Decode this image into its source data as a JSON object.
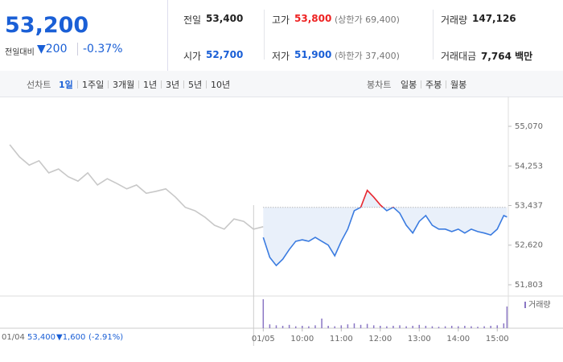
{
  "header": {
    "price": "53,200",
    "change_label": "전일대비",
    "change": "▼200",
    "change_rate": "-0.37%",
    "stats": [
      {
        "label": "전일",
        "value": "53,400",
        "color": "#222"
      },
      {
        "label": "고가",
        "value": "53,800",
        "note": "(상한가 69,400)",
        "color": "#e22"
      },
      {
        "label": "거래량",
        "value": "147,126",
        "color": "#222"
      },
      {
        "label": "시가",
        "value": "52,700",
        "color": "#1a5fd6"
      },
      {
        "label": "저가",
        "value": "51,900",
        "note": "(하한가 37,400)",
        "color": "#1a5fd6"
      },
      {
        "label": "거래대금",
        "value": "7,764 백만",
        "color": "#222"
      }
    ]
  },
  "toolbar": {
    "line_label": "선차트",
    "line_periods": [
      "1일",
      "1주일",
      "3개월",
      "1년",
      "3년",
      "5년",
      "10년"
    ],
    "candle_label": "봉차트",
    "candle_periods": [
      "일봉",
      "주봉",
      "월봉"
    ]
  },
  "chart_data": {
    "type": "line",
    "prev_close": 53400,
    "series": [
      {
        "color": "#c8c8c8",
        "x": [
          -390,
          -375,
          -360,
          -345,
          -330,
          -315,
          -300,
          -285,
          -270,
          -255,
          -240,
          -225,
          -210,
          -195,
          -180,
          -165,
          -150,
          -135,
          -120,
          -105,
          -90,
          -75,
          -60,
          -45,
          -30,
          -15,
          0
        ],
        "values": [
          54690,
          54440,
          54270,
          54360,
          54110,
          54190,
          54030,
          53940,
          54110,
          53860,
          53990,
          53890,
          53780,
          53860,
          53690,
          53730,
          53780,
          53610,
          53400,
          53330,
          53200,
          53030,
          52950,
          53160,
          53110,
          52950,
          53000
        ]
      },
      {
        "color": "#3a7be0",
        "color_up": "#e8262e",
        "x": [
          0,
          10,
          20,
          30,
          40,
          50,
          60,
          70,
          80,
          90,
          100,
          110,
          120,
          130,
          140,
          150,
          160,
          170,
          180,
          190,
          200,
          210,
          220,
          230,
          240,
          250,
          260,
          270,
          280,
          290,
          300,
          310,
          320,
          330,
          340,
          350,
          360,
          370,
          375
        ],
        "values": [
          52780,
          52370,
          52200,
          52330,
          52530,
          52700,
          52730,
          52700,
          52780,
          52700,
          52620,
          52400,
          52700,
          52950,
          53330,
          53400,
          53750,
          53610,
          53450,
          53330,
          53400,
          53280,
          53030,
          52870,
          53110,
          53230,
          53030,
          52950,
          52950,
          52900,
          52950,
          52870,
          52950,
          52900,
          52870,
          52830,
          52950,
          53230,
          53200
        ]
      }
    ],
    "xlim": [
      -405,
      377
    ],
    "ylim": [
      51571,
      55601
    ],
    "xticks": [
      {
        "value": 0,
        "label": "01/05"
      },
      {
        "value": 60,
        "label": "10:00"
      },
      {
        "value": 120,
        "label": "11:00"
      },
      {
        "value": 180,
        "label": "12:00"
      },
      {
        "value": 240,
        "label": "13:00"
      },
      {
        "value": 300,
        "label": "14:00"
      },
      {
        "value": 360,
        "label": "15:00"
      }
    ],
    "yticks": [
      {
        "value": 51803,
        "label": "51,803"
      },
      {
        "value": 52620,
        "label": "52,620"
      },
      {
        "value": 53437,
        "label": "53,437"
      },
      {
        "value": 54253,
        "label": "54,253"
      },
      {
        "value": 55070,
        "label": "55,070"
      }
    ],
    "grid": false,
    "volume": {
      "label": "거래량",
      "color": "#8a76c4",
      "vlim": [
        0,
        60
      ],
      "x": [
        0,
        10,
        20,
        30,
        40,
        50,
        60,
        70,
        80,
        90,
        100,
        110,
        120,
        130,
        140,
        150,
        160,
        170,
        180,
        190,
        200,
        210,
        220,
        230,
        240,
        250,
        260,
        270,
        280,
        290,
        300,
        310,
        320,
        330,
        340,
        350,
        360,
        370,
        375
      ],
      "values": [
        60,
        8,
        6,
        5,
        7,
        4,
        5,
        4,
        6,
        20,
        5,
        4,
        6,
        8,
        10,
        7,
        9,
        6,
        5,
        4,
        5,
        6,
        4,
        5,
        7,
        5,
        4,
        3,
        4,
        5,
        4,
        5,
        4,
        3,
        4,
        5,
        6,
        10,
        45
      ]
    }
  },
  "footer": {
    "date": "01/04",
    "price": "53,400",
    "change": "▼1,600",
    "rate": "(-2.91%)"
  }
}
